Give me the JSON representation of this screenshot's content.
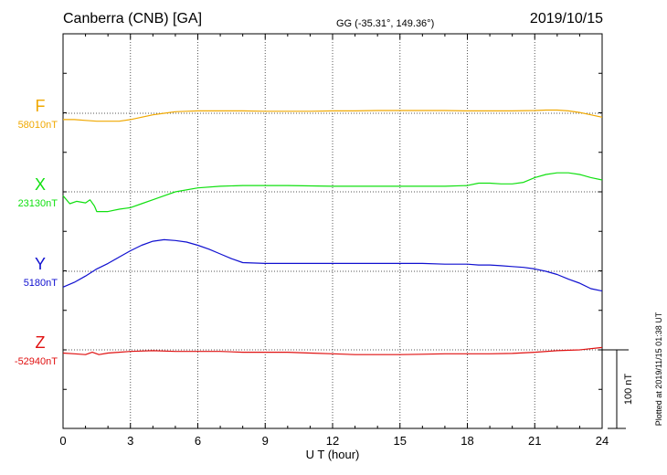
{
  "header": {
    "station": "Canberra (CNB)  [GA]",
    "coords": "GG (-35.31°, 149.36°)",
    "date": "2019/10/15"
  },
  "footnote": "Plotted at 2019/11/15 01:38 UT",
  "scale_bar_label": "100 nT",
  "chart_data": {
    "type": "line",
    "xlabel": "U T (hour)",
    "xlim": [
      0,
      24
    ],
    "xticks": [
      0,
      3,
      6,
      9,
      12,
      15,
      18,
      21,
      24
    ],
    "grid": true,
    "units_per_division_nT": 100,
    "series": [
      {
        "name": "F",
        "baseline_label": "58010nT",
        "color": "#f0a800",
        "baseline_nT": 58010,
        "x": [
          0,
          0.5,
          1,
          1.5,
          2,
          2.5,
          3,
          3.5,
          4,
          4.5,
          5,
          5.5,
          6,
          6.5,
          7,
          8,
          9,
          10,
          11,
          12,
          13,
          14,
          15,
          16,
          17,
          18,
          19,
          20,
          21,
          21.5,
          22,
          22.5,
          23,
          23.5,
          24
        ],
        "values": [
          -8,
          -8,
          -9,
          -10,
          -10,
          -10,
          -8,
          -5,
          -2,
          0,
          2,
          2.5,
          3,
          3,
          3,
          3,
          2.5,
          2.5,
          2.5,
          3,
          3,
          3.5,
          3.5,
          3.5,
          3.5,
          3,
          3,
          3,
          3.5,
          4,
          4,
          3,
          1,
          -2,
          -5
        ]
      },
      {
        "name": "X",
        "baseline_label": "23130nT",
        "color": "#10e010",
        "baseline_nT": 23130,
        "x": [
          0,
          0.3,
          0.6,
          1,
          1.2,
          1.4,
          1.5,
          2,
          2.5,
          3,
          3.5,
          4,
          4.5,
          5,
          6,
          7,
          8,
          9,
          10,
          11,
          12,
          13,
          14,
          15,
          16,
          17,
          18,
          18.5,
          19,
          19.5,
          20,
          20.5,
          21,
          21.5,
          22,
          22.5,
          23,
          23.5,
          24
        ],
        "values": [
          -5,
          -15,
          -12,
          -14,
          -10,
          -18,
          -25,
          -25,
          -22,
          -20,
          -15,
          -10,
          -5,
          0,
          5,
          7,
          8,
          8,
          8,
          7.5,
          7,
          7,
          7,
          7,
          7,
          7,
          8,
          11,
          11,
          10,
          10,
          12,
          18,
          22,
          24,
          24,
          22,
          18,
          15
        ]
      },
      {
        "name": "Y",
        "baseline_label": "5180nT",
        "color": "#1010d0",
        "baseline_nT": 5180,
        "x": [
          0,
          0.5,
          1,
          1.5,
          2,
          2.5,
          3,
          3.5,
          4,
          4.5,
          5,
          5.5,
          6,
          6.5,
          7,
          7.5,
          8,
          9,
          10,
          11,
          12,
          13,
          14,
          15,
          16,
          17,
          18,
          18.5,
          19,
          19.5,
          20,
          20.5,
          21,
          21.5,
          22,
          22.5,
          23,
          23.5,
          24
        ],
        "values": [
          -20,
          -14,
          -6,
          3,
          10,
          18,
          26,
          33,
          38,
          40,
          39,
          37,
          33,
          28,
          22,
          16,
          11,
          10,
          10,
          10,
          10,
          10,
          10,
          10,
          10,
          9,
          9,
          8,
          8,
          7,
          6,
          5,
          3,
          0,
          -4,
          -10,
          -15,
          -22,
          -25
        ]
      },
      {
        "name": "Z",
        "baseline_label": "-52940nT",
        "color": "#e01010",
        "baseline_nT": -52940,
        "x": [
          0,
          0.5,
          1,
          1.3,
          1.6,
          2,
          3,
          4,
          5,
          6,
          7,
          8,
          9,
          10,
          11,
          12,
          13,
          14,
          15,
          16,
          17,
          18,
          19,
          20,
          21,
          22,
          23,
          24
        ],
        "values": [
          -4,
          -5,
          -6,
          -3,
          -6,
          -4,
          -2,
          -1,
          -2,
          -2,
          -2,
          -3,
          -3,
          -3,
          -4,
          -5,
          -6,
          -6,
          -6,
          -5.5,
          -5,
          -5,
          -5,
          -4.5,
          -3,
          -1,
          0,
          3
        ]
      }
    ]
  }
}
